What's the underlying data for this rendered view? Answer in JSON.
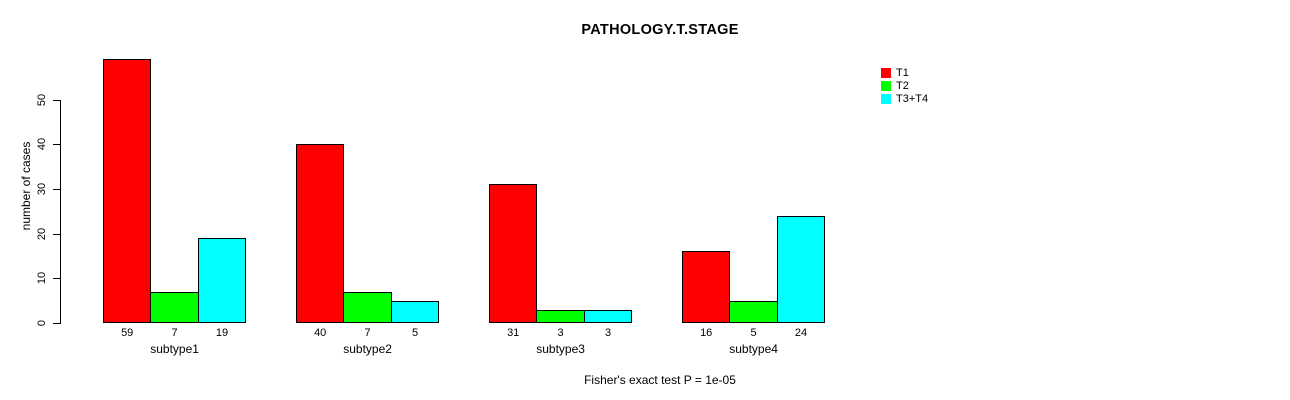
{
  "title": "PATHOLOGY.T.STAGE",
  "y_axis_label": "number of cases",
  "footer": "Fisher's exact test P = 1e-05",
  "colors": {
    "background": "#ffffff",
    "text": "#000000",
    "axis": "#000000",
    "bar_border": "#000000",
    "t1": "#ff0000",
    "t2": "#00ff00",
    "t3_t4": "#00ffff"
  },
  "legend": {
    "items": [
      {
        "label": "T1",
        "color": "#ff0000"
      },
      {
        "label": "T2",
        "color": "#00ff00"
      },
      {
        "label": "T3+T4",
        "color": "#00ffff"
      }
    ]
  },
  "chart_data": {
    "type": "bar",
    "title": "PATHOLOGY.T.STAGE",
    "categories": [
      "subtype1",
      "subtype2",
      "subtype3",
      "subtype4"
    ],
    "series": [
      {
        "name": "T1",
        "color": "#ff0000",
        "values": [
          59,
          40,
          31,
          16
        ]
      },
      {
        "name": "T2",
        "color": "#00ff00",
        "values": [
          7,
          7,
          3,
          5
        ]
      },
      {
        "name": "T3+T4",
        "color": "#00ffff",
        "values": [
          19,
          5,
          3,
          24
        ]
      }
    ],
    "xlabel": "",
    "ylabel": "number of cases",
    "ylim": [
      0,
      59
    ],
    "yticks": [
      0,
      10,
      20,
      30,
      40,
      50
    ],
    "grid": false,
    "legend_position": "top-right",
    "show_bar_values": true,
    "annotation": "Fisher's exact test P = 1e-05"
  }
}
